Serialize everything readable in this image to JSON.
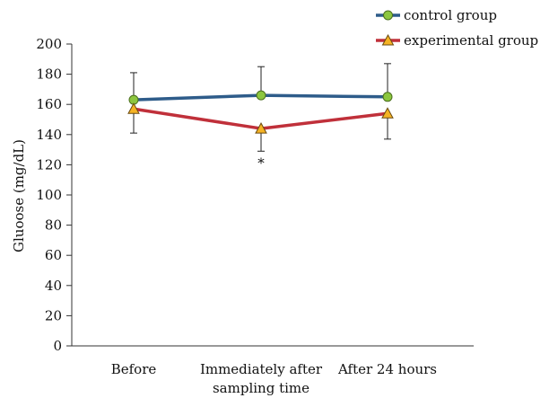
{
  "chart_data": {
    "type": "line",
    "categories": [
      "Before",
      "Immediately after",
      "After 24 hours"
    ],
    "xlabel": "sampling time",
    "ylabel": "Gluoose (mg/dL)",
    "ylim": [
      0,
      200
    ],
    "yticks": [
      0,
      20,
      40,
      60,
      80,
      100,
      120,
      140,
      160,
      180,
      200
    ],
    "grid": false,
    "legend_position": "top-right",
    "series": [
      {
        "name": "control group",
        "values": [
          163,
          166,
          165
        ],
        "error_upper": [
          181,
          185,
          187
        ],
        "error_lower": [
          null,
          null,
          null
        ],
        "color": "#2e5c8a",
        "marker": "circle",
        "marker_color": "#8cc63f"
      },
      {
        "name": "experimental group",
        "values": [
          157,
          144,
          154
        ],
        "error_upper": [
          null,
          null,
          null
        ],
        "error_lower": [
          141,
          129,
          137
        ],
        "color": "#c0303a",
        "marker": "triangle",
        "marker_color": "#f5b324"
      }
    ],
    "annotations": [
      {
        "category_index": 1,
        "text": "*"
      }
    ]
  }
}
